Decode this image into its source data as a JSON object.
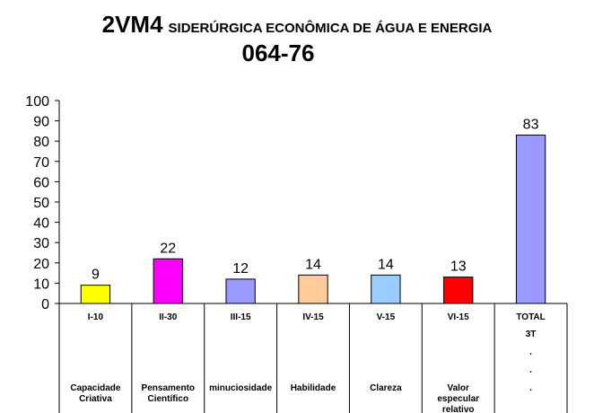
{
  "title": {
    "code": "2VM4",
    "company": "SIDERÚRGICA ECONÔMICA DE ÁGUA E ENERGIA",
    "number": "064-76"
  },
  "chart_data": {
    "type": "bar",
    "categories": [
      "I-10",
      "II-30",
      "III-15",
      "IV-15",
      "V-15",
      "VI-15",
      "TOTAL"
    ],
    "category_descriptions": [
      [
        "Capacidade",
        "Criativa"
      ],
      [
        "Pensamento",
        "Científico"
      ],
      [
        "minuciosidade"
      ],
      [
        "Habilidade"
      ],
      [
        "Clareza"
      ],
      [
        "Valor",
        "especular",
        "relativo"
      ],
      [
        "3T",
        ".",
        ".",
        "."
      ]
    ],
    "values": [
      9,
      22,
      12,
      14,
      14,
      13,
      83
    ],
    "colors": [
      "#FFFF00",
      "#FF00FF",
      "#9999FF",
      "#FFCC99",
      "#99CCFF",
      "#FF0000",
      "#9999FF"
    ],
    "ylim": [
      0,
      100
    ],
    "yticks": [
      0,
      10,
      20,
      30,
      40,
      50,
      60,
      70,
      80,
      90,
      100
    ],
    "grid": false,
    "legend": "none"
  }
}
